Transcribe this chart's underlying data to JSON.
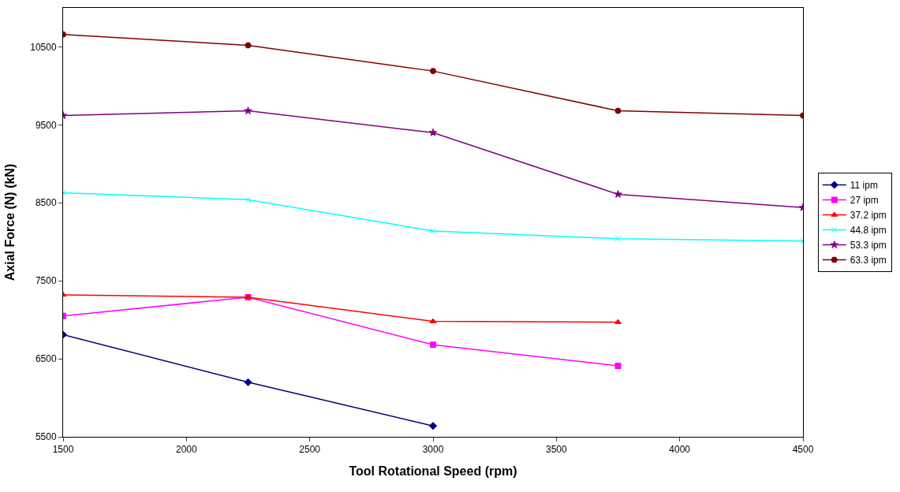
{
  "chart_data": {
    "type": "line",
    "xlabel": "Tool Rotational Speed (rpm)",
    "ylabel": "Axial Force (N) (kN)",
    "x": [
      1500,
      2250,
      3000,
      3750,
      4500
    ],
    "xlim": [
      1500,
      4500
    ],
    "xticks": [
      1500,
      2000,
      2500,
      3000,
      3500,
      4000,
      4500
    ],
    "ylim": [
      5500,
      11000
    ],
    "yticks": [
      5500,
      6500,
      7500,
      8500,
      9500,
      10500
    ],
    "legend": "right",
    "series": [
      {
        "name": "11 ipm",
        "color": "#000080",
        "marker": "diamond",
        "values": [
          6810,
          6200,
          5640,
          null,
          null
        ]
      },
      {
        "name": "27 ipm",
        "color": "#ff00ff",
        "marker": "square",
        "values": [
          7050,
          7290,
          6680,
          6410,
          null
        ]
      },
      {
        "name": "37.2 ipm",
        "color": "#ff0000",
        "marker": "triangle",
        "values": [
          7320,
          7290,
          6980,
          6970,
          null
        ]
      },
      {
        "name": "44.8 ipm",
        "color": "#00ffff",
        "marker": "cross",
        "values": [
          8630,
          8540,
          8140,
          8040,
          8010
        ]
      },
      {
        "name": "53.3 ipm",
        "color": "#800080",
        "marker": "star",
        "values": [
          9620,
          9680,
          9400,
          8610,
          8440
        ]
      },
      {
        "name": "63.3 ipm",
        "color": "#800000",
        "marker": "circle",
        "values": [
          10660,
          10520,
          10190,
          9680,
          9620
        ]
      }
    ]
  }
}
